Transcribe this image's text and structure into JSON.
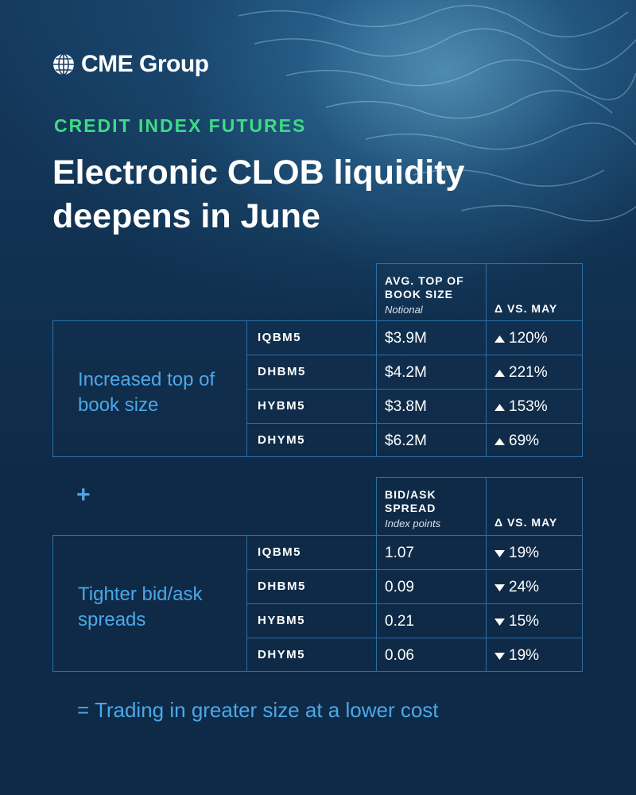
{
  "brand": {
    "name": "CME Group"
  },
  "kicker": "CREDIT INDEX FUTURES",
  "headline": "Electronic CLOB liquidity deepens in June",
  "colors": {
    "accent_green": "#3ddc84",
    "accent_blue": "#4aa8e8",
    "border": "#2b6fa8",
    "background": "#0f2a47"
  },
  "icons": {
    "logo": "globe-icon",
    "up": "triangle-up-icon",
    "down": "triangle-down-icon"
  },
  "book_size": {
    "header_title": "AVG. TOP OF BOOK SIZE",
    "header_sub": "Notional",
    "header_delta": "Δ VS. MAY",
    "label": "Increased top of book size",
    "rows": [
      {
        "ticker": "IQBM5",
        "value": "$3.9M",
        "change": "120%",
        "direction": "up"
      },
      {
        "ticker": "DHBM5",
        "value": "$4.2M",
        "change": "221%",
        "direction": "up"
      },
      {
        "ticker": "HYBM5",
        "value": "$3.8M",
        "change": "153%",
        "direction": "up"
      },
      {
        "ticker": "DHYM5",
        "value": "$6.2M",
        "change": "69%",
        "direction": "up"
      }
    ]
  },
  "plus": "+",
  "spread": {
    "header_title": "BID/ASK SPREAD",
    "header_sub": "Index points",
    "header_delta": "Δ VS. MAY",
    "label": "Tighter bid/ask spreads",
    "rows": [
      {
        "ticker": "IQBM5",
        "value": "1.07",
        "change": "19%",
        "direction": "down"
      },
      {
        "ticker": "DHBM5",
        "value": "0.09",
        "change": "24%",
        "direction": "down"
      },
      {
        "ticker": "HYBM5",
        "value": "0.21",
        "change": "15%",
        "direction": "down"
      },
      {
        "ticker": "DHYM5",
        "value": "0.06",
        "change": "19%",
        "direction": "down"
      }
    ]
  },
  "footer": "= Trading in greater size at a lower cost"
}
